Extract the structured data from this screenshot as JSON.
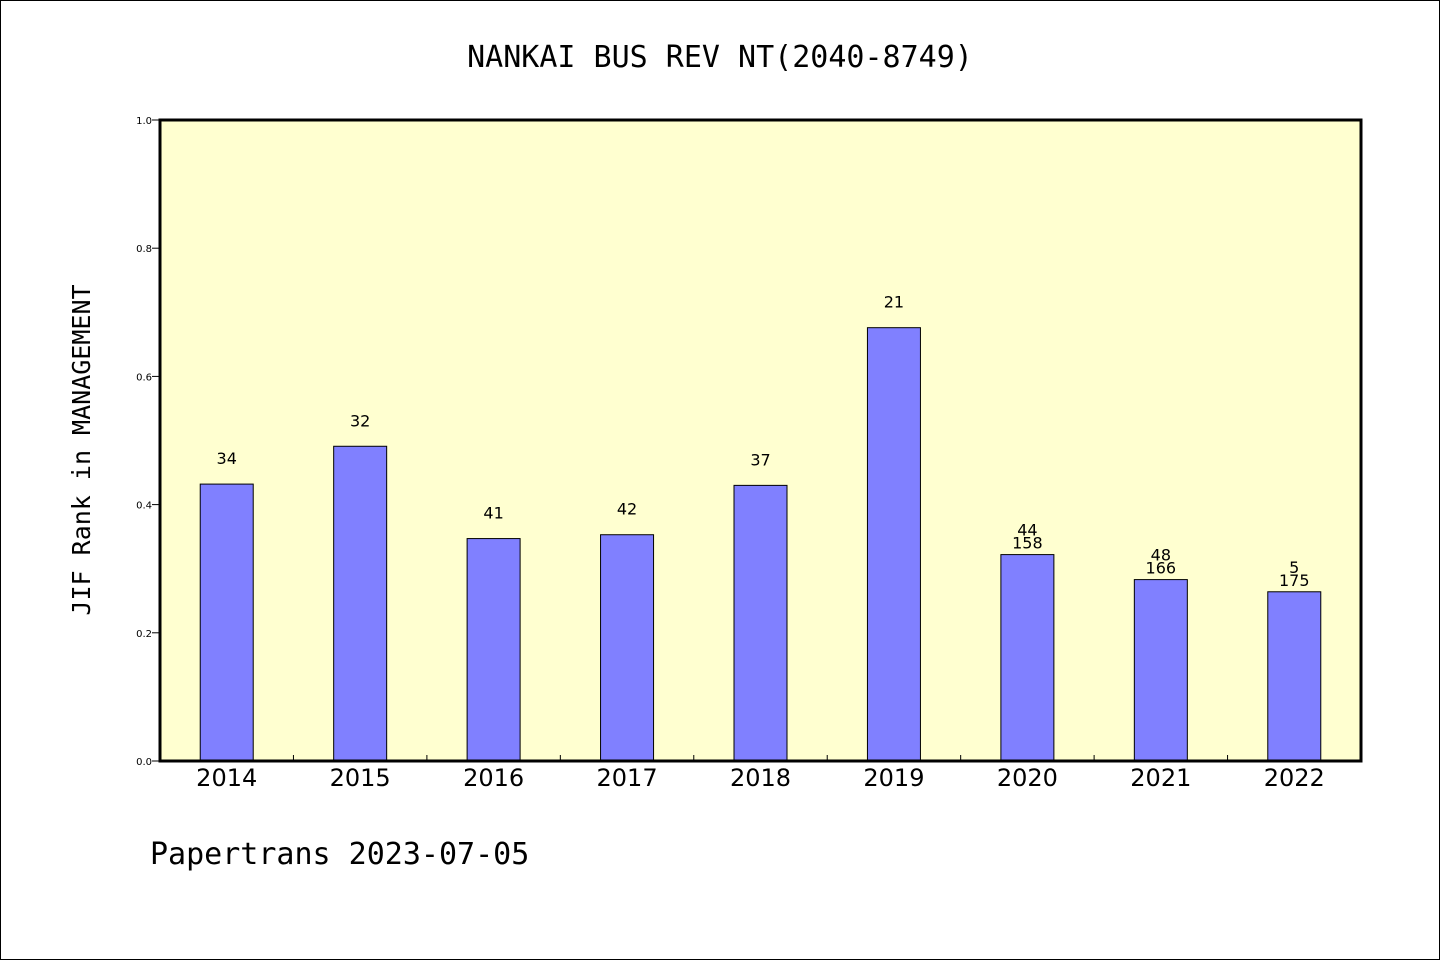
{
  "chart_data": {
    "type": "bar",
    "title": "NANKAI BUS REV NT(2040-8749)",
    "xlabel": "",
    "ylabel": "JIF Rank in MANAGEMENT",
    "ylim": [
      0,
      1.0
    ],
    "yticks": [
      "0.0",
      "0.2",
      "0.4",
      "0.6",
      "0.8",
      "1.0"
    ],
    "grid": false,
    "categories": [
      "2014",
      "2015",
      "2016",
      "2017",
      "2018",
      "2019",
      "2020",
      "2021",
      "2022"
    ],
    "values": [
      0.432,
      0.491,
      0.347,
      0.353,
      0.43,
      0.676,
      0.322,
      0.283,
      0.264
    ],
    "data_labels": [
      [
        "34"
      ],
      [
        "32"
      ],
      [
        "41"
      ],
      [
        "42"
      ],
      [
        "37"
      ],
      [
        "21"
      ],
      [
        "44",
        "158"
      ],
      [
        "48",
        "166"
      ],
      [
        "5",
        "175"
      ]
    ],
    "colors": {
      "bar": "#8080ff",
      "plot_background": "#ffffd0"
    }
  },
  "footer": "Papertrans 2023-07-05"
}
